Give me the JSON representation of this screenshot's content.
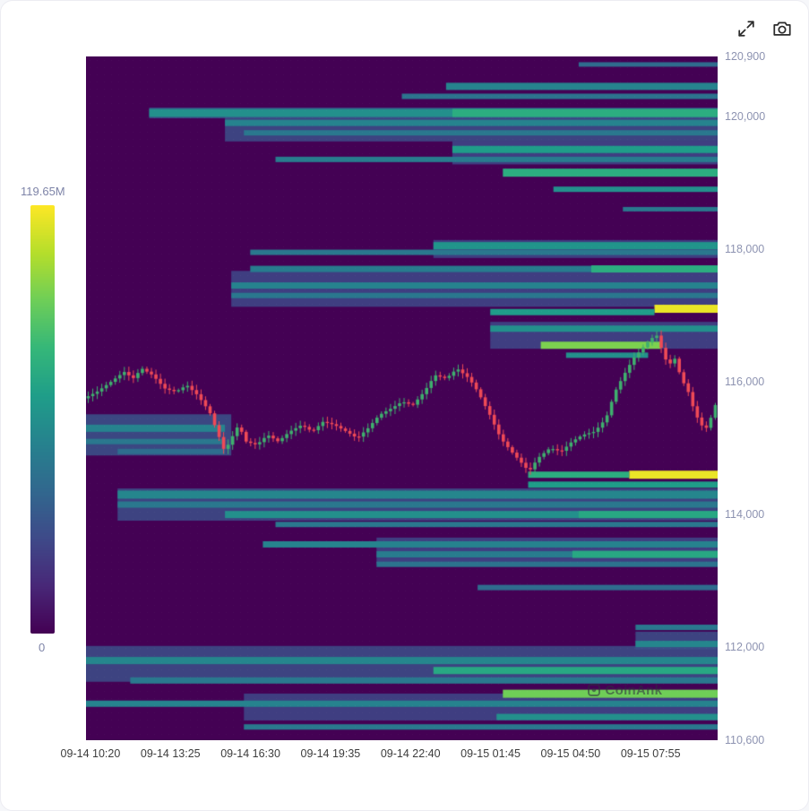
{
  "toolbar": {
    "icons": [
      {
        "name": "fullscreen-icon",
        "meaning": "expand chart to fullscreen"
      },
      {
        "name": "camera-icon",
        "meaning": "save chart screenshot"
      }
    ]
  },
  "chart_data": {
    "type": "heatmap",
    "subtype": "liquidation-heatmap-with-candlestick-overlay",
    "title": "",
    "watermark": "CoinAnk",
    "colorbar": {
      "max_label": "119.65M",
      "min_label": "0",
      "colormap": "viridis",
      "position": "left"
    },
    "x_ticks": [
      "09-14 10:20",
      "09-14 13:25",
      "09-14 16:30",
      "09-14 19:35",
      "09-14 22:40",
      "09-15 01:45",
      "09-15 04:50",
      "09-15 07:55"
    ],
    "y_axis": {
      "min": 110600,
      "max": 120900,
      "ticks": [
        {
          "label": "120,900",
          "value": 120900
        },
        {
          "label": "120,000",
          "value": 120000
        },
        {
          "label": "118,000",
          "value": 118000
        },
        {
          "label": "116,000",
          "value": 116000
        },
        {
          "label": "114,000",
          "value": 114000
        },
        {
          "label": "112,000",
          "value": 112000
        },
        {
          "label": "110,600",
          "value": 110600
        }
      ]
    },
    "colors": {
      "candle_up": "#3faf6e",
      "candle_down": "#ef4a56",
      "y_label": "#8d93b1",
      "x_label": "#3c3c3c",
      "colorbar_label": "#7e84a8"
    },
    "heat_bands_format": [
      "price",
      "x_start_frac",
      "x_end_frac",
      "intensity_0_1",
      "thickness_px"
    ],
    "heat_bands": [
      [
        119850,
        0.22,
        1.0,
        0.24,
        34
      ],
      [
        119450,
        0.58,
        1.0,
        0.22,
        26
      ],
      [
        120050,
        0.1,
        1.0,
        0.26,
        12
      ],
      [
        118000,
        0.55,
        1.0,
        0.22,
        20
      ],
      [
        117400,
        0.23,
        1.0,
        0.22,
        40
      ],
      [
        116700,
        0.64,
        1.0,
        0.22,
        30
      ],
      [
        115200,
        0.0,
        0.23,
        0.26,
        46
      ],
      [
        114150,
        0.05,
        1.0,
        0.24,
        36
      ],
      [
        113450,
        0.46,
        1.0,
        0.22,
        30
      ],
      [
        112100,
        0.87,
        1.0,
        0.24,
        20
      ],
      [
        111750,
        0.0,
        1.0,
        0.24,
        40
      ],
      [
        111100,
        0.25,
        1.0,
        0.22,
        30
      ],
      [
        120780,
        0.78,
        1.0,
        0.35,
        5
      ],
      [
        120450,
        0.57,
        1.0,
        0.45,
        8
      ],
      [
        120300,
        0.5,
        1.0,
        0.38,
        6
      ],
      [
        120050,
        0.1,
        1.0,
        0.5,
        9
      ],
      [
        120050,
        0.58,
        1.0,
        0.62,
        9
      ],
      [
        119900,
        0.22,
        1.0,
        0.45,
        7
      ],
      [
        119750,
        0.25,
        1.0,
        0.4,
        6
      ],
      [
        119500,
        0.58,
        1.0,
        0.55,
        8
      ],
      [
        119350,
        0.3,
        1.0,
        0.42,
        6
      ],
      [
        119150,
        0.66,
        1.0,
        0.62,
        9
      ],
      [
        118900,
        0.74,
        1.0,
        0.5,
        6
      ],
      [
        118600,
        0.85,
        1.0,
        0.4,
        5
      ],
      [
        118050,
        0.55,
        1.0,
        0.52,
        8
      ],
      [
        117950,
        0.26,
        1.0,
        0.4,
        6
      ],
      [
        117700,
        0.26,
        1.0,
        0.42,
        7
      ],
      [
        117700,
        0.8,
        1.0,
        0.62,
        8
      ],
      [
        117450,
        0.23,
        1.0,
        0.45,
        7
      ],
      [
        117300,
        0.23,
        1.0,
        0.4,
        6
      ],
      [
        117100,
        0.9,
        1.0,
        0.97,
        9
      ],
      [
        117050,
        0.64,
        0.9,
        0.55,
        7
      ],
      [
        116800,
        0.64,
        1.0,
        0.5,
        7
      ],
      [
        116550,
        0.72,
        0.91,
        0.8,
        8
      ],
      [
        116400,
        0.76,
        0.89,
        0.5,
        6
      ],
      [
        115300,
        0.0,
        0.22,
        0.45,
        8
      ],
      [
        115100,
        0.0,
        0.22,
        0.4,
        6
      ],
      [
        114950,
        0.05,
        0.22,
        0.36,
        6
      ],
      [
        114600,
        0.86,
        1.0,
        0.97,
        9
      ],
      [
        114600,
        0.7,
        0.86,
        0.62,
        7
      ],
      [
        114450,
        0.7,
        1.0,
        0.55,
        7
      ],
      [
        114300,
        0.05,
        1.0,
        0.46,
        9
      ],
      [
        114150,
        0.05,
        1.0,
        0.4,
        7
      ],
      [
        114000,
        0.22,
        1.0,
        0.5,
        8
      ],
      [
        114000,
        0.78,
        1.0,
        0.6,
        8
      ],
      [
        113850,
        0.3,
        1.0,
        0.4,
        6
      ],
      [
        113550,
        0.28,
        1.0,
        0.45,
        7
      ],
      [
        113400,
        0.46,
        1.0,
        0.42,
        7
      ],
      [
        113400,
        0.77,
        1.0,
        0.6,
        8
      ],
      [
        113250,
        0.46,
        1.0,
        0.38,
        6
      ],
      [
        112900,
        0.62,
        1.0,
        0.35,
        6
      ],
      [
        112300,
        0.87,
        1.0,
        0.4,
        6
      ],
      [
        112050,
        0.87,
        1.0,
        0.46,
        7
      ],
      [
        111800,
        0.0,
        1.0,
        0.46,
        8
      ],
      [
        111650,
        0.55,
        1.0,
        0.6,
        8
      ],
      [
        111500,
        0.07,
        1.0,
        0.4,
        7
      ],
      [
        111300,
        0.66,
        1.0,
        0.78,
        9
      ],
      [
        111150,
        0.0,
        1.0,
        0.45,
        7
      ],
      [
        110950,
        0.65,
        1.0,
        0.5,
        7
      ],
      [
        110800,
        0.25,
        1.0,
        0.4,
        6
      ]
    ],
    "price_path_format": [
      "x_frac",
      "price"
    ],
    "price_path": [
      [
        0.0,
        115750
      ],
      [
        0.021,
        115850
      ],
      [
        0.043,
        116000
      ],
      [
        0.064,
        116150
      ],
      [
        0.078,
        116050
      ],
      [
        0.092,
        116200
      ],
      [
        0.109,
        116100
      ],
      [
        0.128,
        115900
      ],
      [
        0.146,
        115850
      ],
      [
        0.163,
        115950
      ],
      [
        0.18,
        115800
      ],
      [
        0.199,
        115550
      ],
      [
        0.213,
        115200
      ],
      [
        0.223,
        114950
      ],
      [
        0.234,
        115150
      ],
      [
        0.245,
        115350
      ],
      [
        0.257,
        115100
      ],
      [
        0.274,
        115050
      ],
      [
        0.291,
        115200
      ],
      [
        0.308,
        115100
      ],
      [
        0.326,
        115250
      ],
      [
        0.345,
        115350
      ],
      [
        0.362,
        115250
      ],
      [
        0.379,
        115400
      ],
      [
        0.397,
        115350
      ],
      [
        0.416,
        115250
      ],
      [
        0.433,
        115150
      ],
      [
        0.45,
        115300
      ],
      [
        0.468,
        115500
      ],
      [
        0.487,
        115600
      ],
      [
        0.504,
        115700
      ],
      [
        0.521,
        115650
      ],
      [
        0.539,
        115850
      ],
      [
        0.556,
        116100
      ],
      [
        0.574,
        116050
      ],
      [
        0.591,
        116200
      ],
      [
        0.61,
        116050
      ],
      [
        0.624,
        115850
      ],
      [
        0.643,
        115500
      ],
      [
        0.66,
        115150
      ],
      [
        0.677,
        114950
      ],
      [
        0.691,
        114800
      ],
      [
        0.705,
        114650
      ],
      [
        0.719,
        114850
      ],
      [
        0.738,
        115000
      ],
      [
        0.756,
        114950
      ],
      [
        0.773,
        115100
      ],
      [
        0.79,
        115200
      ],
      [
        0.809,
        115250
      ],
      [
        0.827,
        115450
      ],
      [
        0.841,
        115850
      ],
      [
        0.855,
        116100
      ],
      [
        0.87,
        116350
      ],
      [
        0.884,
        116500
      ],
      [
        0.898,
        116650
      ],
      [
        0.908,
        116700
      ],
      [
        0.918,
        116400
      ],
      [
        0.926,
        116250
      ],
      [
        0.936,
        116350
      ],
      [
        0.946,
        116050
      ],
      [
        0.957,
        115850
      ],
      [
        0.967,
        115550
      ],
      [
        0.977,
        115350
      ],
      [
        0.987,
        115300
      ],
      [
        1.0,
        115650
      ]
    ],
    "candle_count": 140
  }
}
